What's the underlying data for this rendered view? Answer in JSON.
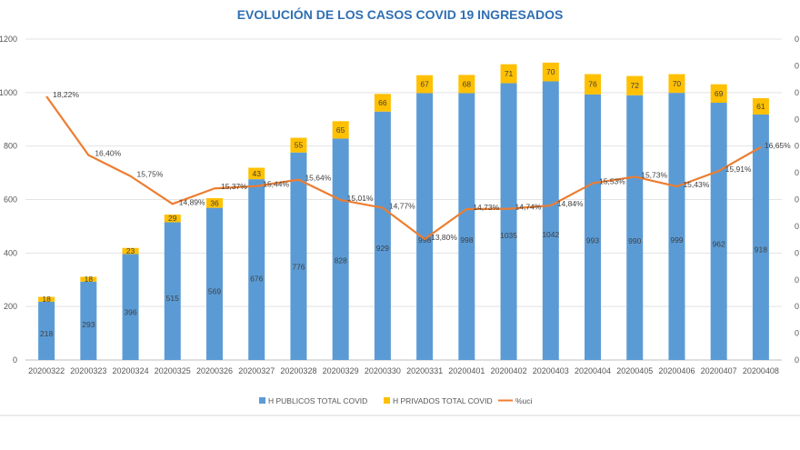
{
  "chart_data": {
    "type": "bar",
    "title": "EVOLUCIÓN DE LOS CASOS COVID 19 INGRESADOS",
    "categories": [
      "20200322",
      "20200323",
      "20200324",
      "20200325",
      "20200326",
      "20200327",
      "20200328",
      "20200329",
      "20200330",
      "20200331",
      "20200401",
      "20200402",
      "20200403",
      "20200404",
      "20200405",
      "20200406",
      "20200407",
      "20200408"
    ],
    "ylim": [
      0,
      1200
    ],
    "yticks": [
      "0",
      "200",
      "400",
      "600",
      "800",
      "1000",
      "1200"
    ],
    "y2_tick_labels": [
      "0",
      "0",
      "0",
      "0",
      "0",
      "0",
      "0",
      "0",
      "0",
      "0",
      "0",
      "0",
      "0"
    ],
    "series": [
      {
        "name": "H PUBLICOS TOTAL COVID",
        "kind": "bar-stacked",
        "color": "#5b9bd5",
        "values": [
          218,
          293,
          396,
          515,
          569,
          676,
          776,
          828,
          929,
          998,
          998,
          1035,
          1042,
          993,
          990,
          999,
          962,
          918
        ]
      },
      {
        "name": "H PRIVADOS TOTAL COVID",
        "kind": "bar-stacked",
        "color": "#ffc000",
        "values": [
          18,
          18,
          23,
          29,
          36,
          43,
          55,
          65,
          66,
          67,
          68,
          71,
          70,
          76,
          72,
          70,
          69,
          61
        ]
      },
      {
        "name": "%uci",
        "kind": "line",
        "axis": "secondary",
        "color": "#ed7d31",
        "values": [
          18.22,
          16.4,
          15.75,
          14.89,
          15.37,
          15.44,
          15.64,
          15.01,
          14.77,
          13.8,
          14.73,
          14.74,
          14.84,
          15.53,
          15.73,
          15.43,
          15.91,
          16.65
        ],
        "labels": [
          "18,22%",
          "16,40%",
          "15,75%",
          "14,89%",
          "15,37%",
          "15,44%",
          "15,64%",
          "15,01%",
          "14,77%",
          "13,80%",
          "14,73%",
          "14,74%",
          "14,84%",
          "15,53%",
          "15,73%",
          "15,43%",
          "15,91%",
          "16,65%"
        ]
      }
    ],
    "grid": true,
    "legend_position": "bottom"
  }
}
